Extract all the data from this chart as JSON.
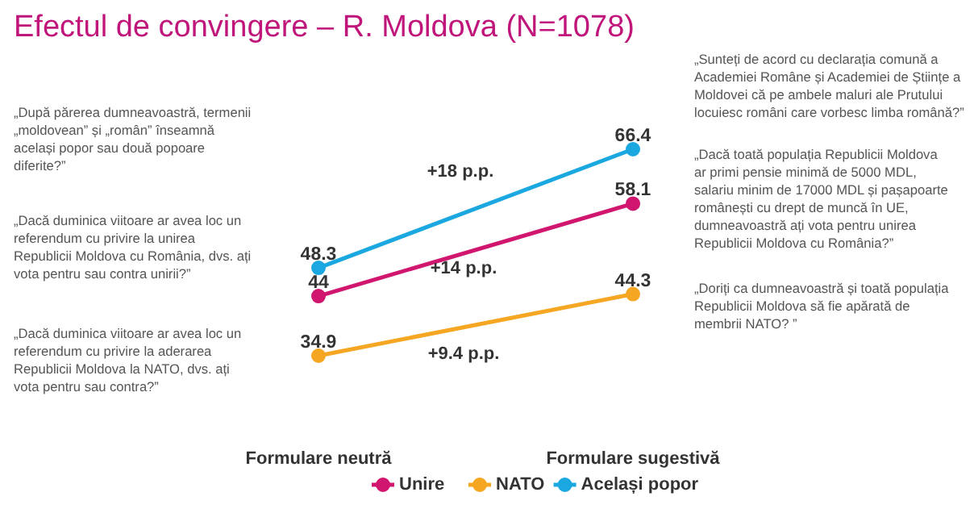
{
  "chart_data": {
    "type": "line",
    "title": "Efectul de convingere – R. Moldova (N=1078)",
    "categories": [
      "Formulare neutră",
      "Formulare sugestivă"
    ],
    "series": [
      {
        "name": "Unire",
        "color": "#d0166f",
        "values": [
          44,
          58.1
        ]
      },
      {
        "name": "NATO",
        "color": "#f5a623",
        "values": [
          34.9,
          44.3
        ]
      },
      {
        "name": "Același popor",
        "color": "#1ba8e0",
        "values": [
          48.3,
          66.4
        ]
      }
    ],
    "annotations": [
      "„După părerea dumneavoastră, termenii „moldovean” și „român” înseamnă același popor sau două popoare diferite?”",
      "„Dacă duminica viitoare ar avea loc un referendum cu privire la unirea Republicii Moldova cu România, dvs. ați vota pentru sau contra unirii?”",
      "„Dacă duminica viitoare ar avea loc un referendum cu privire la aderarea Republicii Moldova la NATO, dvs. ați vota pentru sau contra?”",
      "„Sunteți de acord cu declarația comună a Academiei Române și Academiei de Științe a Moldovei că pe ambele maluri ale Prutului locuiesc români care vorbesc limba română?”",
      "„Dacă toată populația Republicii Moldova ar primi pensie minimă de 5000 MDL, salariu minim de 17000 MDL și pașapoarte românești cu drept de muncă în UE, dumneavoastră ați vota pentru unirea Republicii Moldova cu România?”",
      "„Doriți ca dumneavoastră și toată populația Republicii Moldova să fie apărată de membrii NATO? ”",
      "+18 p.p.",
      "+14 p.p.",
      "+9.4 p.p."
    ],
    "data_labels": true,
    "marker": "circle",
    "legend": "bottom",
    "grid": false
  }
}
